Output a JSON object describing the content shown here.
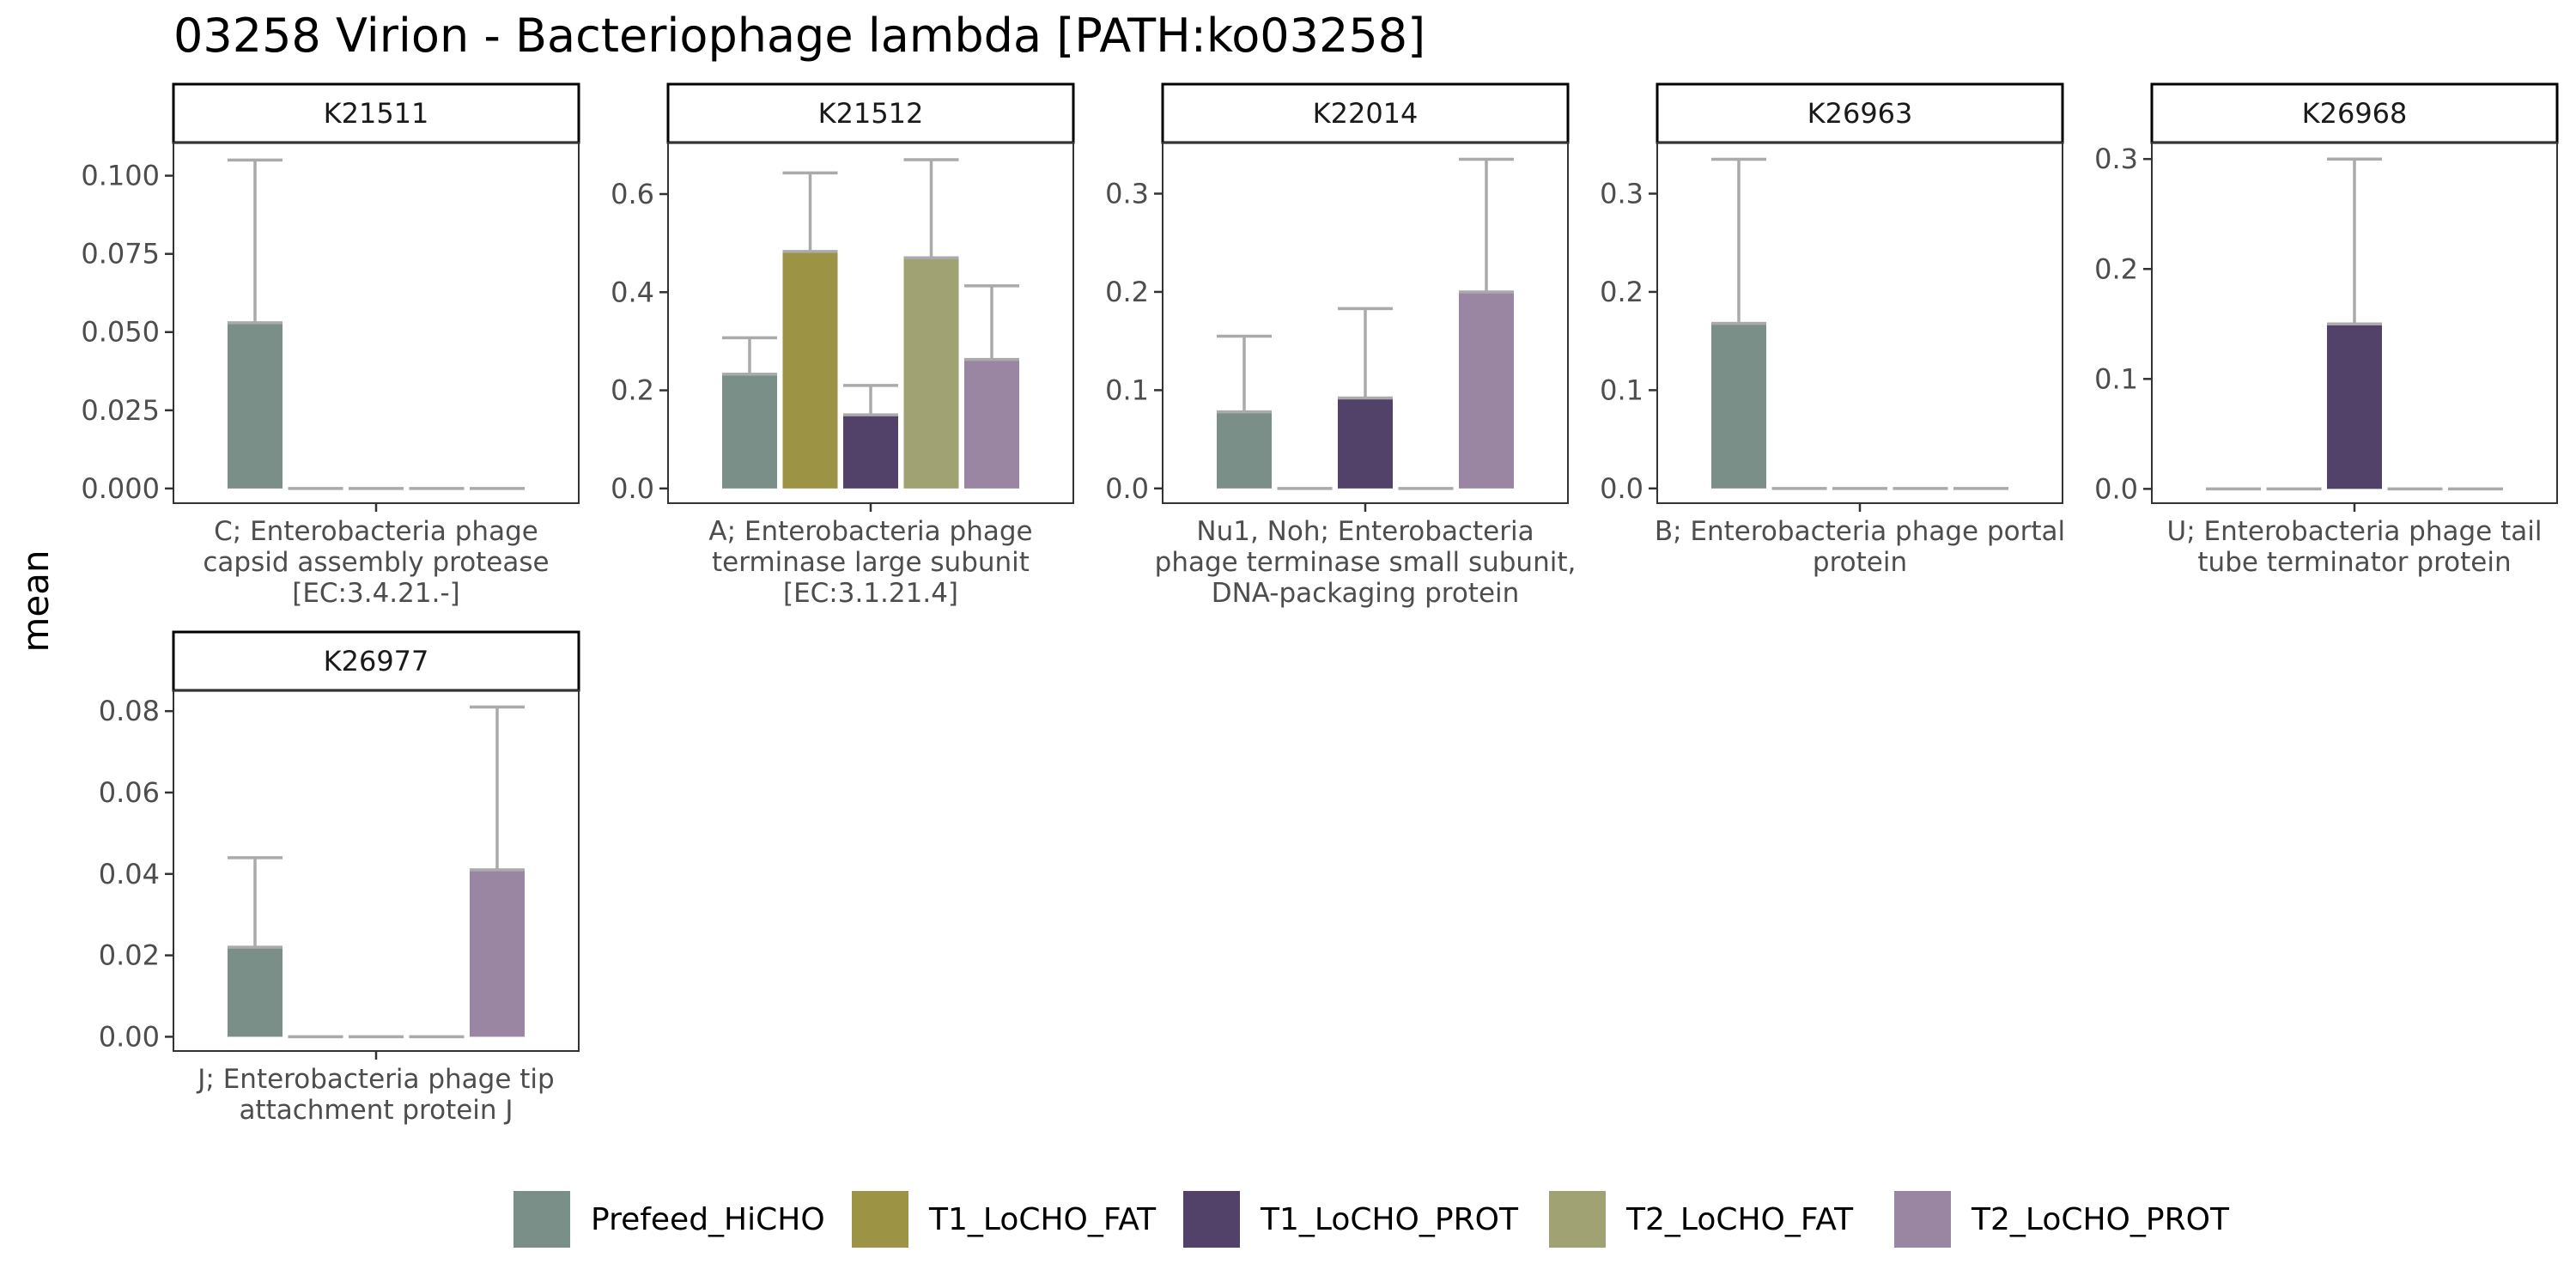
{
  "title": "03258 Virion - Bacteriophage lambda [PATH:ko03258]",
  "chart_data": {
    "type": "bar",
    "title": "03258 Virion - Bacteriophage lambda [PATH:ko03258]",
    "ylabel": "mean",
    "xlabel": "",
    "groups": [
      "Prefeed_HiCHO",
      "T1_LoCHO_FAT",
      "T1_LoCHO_PROT",
      "T2_LoCHO_FAT",
      "T2_LoCHO_PROT"
    ],
    "colors": {
      "Prefeed_HiCHO": "#7a8f87",
      "T1_LoCHO_FAT": "#9d9345",
      "T1_LoCHO_PROT": "#524169",
      "T2_LoCHO_FAT": "#a1a274",
      "T2_LoCHO_PROT": "#9a86a2"
    },
    "errorbar_color": "#aaaaaa",
    "legend_position": "bottom",
    "panels": [
      {
        "id": "K21511",
        "category": "C; Enterobacteria phage capsid assembly protease [EC:3.4.21.-]",
        "category_lines": [
          "C; Enterobacteria phage",
          "capsid assembly protease",
          "[EC:3.4.21.-]"
        ],
        "ylim": [
          -0.0047,
          0.1106
        ],
        "ticks": [
          0,
          0.025,
          0.05,
          0.075,
          0.1
        ],
        "tick_labels": [
          "0.000",
          "0.025",
          "0.050",
          "0.075",
          "0.100"
        ],
        "values": [
          0.053,
          0,
          0,
          0,
          0
        ],
        "errors": [
          0.105,
          0,
          0,
          0,
          0
        ]
      },
      {
        "id": "K21512",
        "category": "A; Enterobacteria phage terminase large subunit [EC:3.1.21.4]",
        "category_lines": [
          "A; Enterobacteria phage",
          "terminase large subunit",
          "[EC:3.1.21.4]"
        ],
        "ylim": [
          -0.03,
          0.705
        ],
        "ticks": [
          0,
          0.2,
          0.4,
          0.6
        ],
        "tick_labels": [
          "0.0",
          "0.2",
          "0.4",
          "0.6"
        ],
        "values": [
          0.233,
          0.483,
          0.15,
          0.47,
          0.263
        ],
        "errors": [
          0.307,
          0.643,
          0.21,
          0.67,
          0.413
        ]
      },
      {
        "id": "K22014",
        "category": "Nu1, Noh; Enterobacteria phage terminase small subunit, DNA-packaging protein",
        "category_lines": [
          "Nu1, Noh; Enterobacteria",
          "phage terminase small subunit,",
          "DNA-packaging protein"
        ],
        "ylim": [
          -0.015,
          0.352
        ],
        "ticks": [
          0,
          0.1,
          0.2,
          0.3
        ],
        "tick_labels": [
          "0.0",
          "0.1",
          "0.2",
          "0.3"
        ],
        "values": [
          0.078,
          0,
          0.092,
          0,
          0.2
        ],
        "errors": [
          0.155,
          0,
          0.183,
          0,
          0.335
        ]
      },
      {
        "id": "K26963",
        "category": "B; Enterobacteria phage portal protein",
        "category_lines": [
          "B; Enterobacteria phage portal",
          "protein"
        ],
        "ylim": [
          -0.015,
          0.352
        ],
        "ticks": [
          0,
          0.1,
          0.2,
          0.3
        ],
        "tick_labels": [
          "0.0",
          "0.1",
          "0.2",
          "0.3"
        ],
        "values": [
          0.168,
          0,
          0,
          0,
          0
        ],
        "errors": [
          0.335,
          0,
          0,
          0,
          0
        ]
      },
      {
        "id": "K26968",
        "category": "U; Enterobacteria phage tail tube terminator protein",
        "category_lines": [
          "U; Enterobacteria phage tail",
          "tube terminator protein"
        ],
        "ylim": [
          -0.013,
          0.315
        ],
        "ticks": [
          0,
          0.1,
          0.2,
          0.3
        ],
        "tick_labels": [
          "0.0",
          "0.1",
          "0.2",
          "0.3"
        ],
        "values": [
          0,
          0,
          0.15,
          0,
          0
        ],
        "errors": [
          0,
          0,
          0.3,
          0,
          0
        ]
      },
      {
        "id": "K26977",
        "category": "J; Enterobacteria phage tip attachment protein J",
        "category_lines": [
          "J; Enterobacteria phage tip",
          "attachment protein J"
        ],
        "ylim": [
          -0.0035,
          0.0851
        ],
        "ticks": [
          0,
          0.02,
          0.04,
          0.06,
          0.08
        ],
        "tick_labels": [
          "0.00",
          "0.02",
          "0.04",
          "0.06",
          "0.08"
        ],
        "values": [
          0.022,
          0,
          0,
          0,
          0.041
        ],
        "errors": [
          0.044,
          0,
          0,
          0,
          0.081
        ]
      }
    ]
  }
}
